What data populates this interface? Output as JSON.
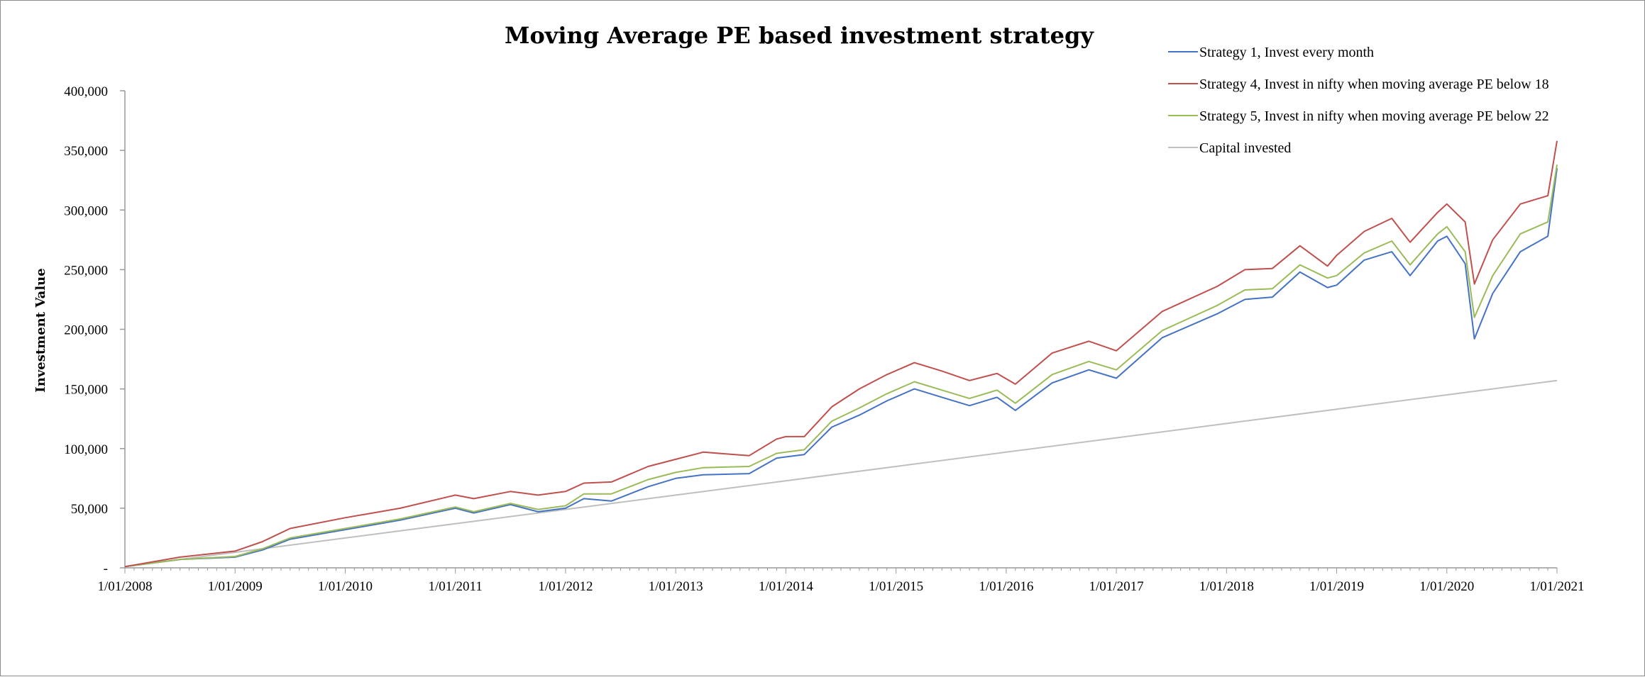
{
  "chart_data": {
    "type": "line",
    "title": "Moving Average PE based investment strategy",
    "ylabel": "Investment Value",
    "xlabel": "",
    "ylim": [
      0,
      400000
    ],
    "yticks": [
      {
        "value": 0,
        "label": "-"
      },
      {
        "value": 50000,
        "label": "50,000"
      },
      {
        "value": 100000,
        "label": "100,000"
      },
      {
        "value": 150000,
        "label": "150,000"
      },
      {
        "value": 200000,
        "label": "200,000"
      },
      {
        "value": 250000,
        "label": "250,000"
      },
      {
        "value": 300000,
        "label": "300,000"
      },
      {
        "value": 350000,
        "label": "350,000"
      },
      {
        "value": 400000,
        "label": "400,000"
      }
    ],
    "xlim": [
      "1/01/2008",
      "1/01/2021"
    ],
    "xticks": [
      "1/01/2008",
      "1/01/2009",
      "1/01/2010",
      "1/01/2011",
      "1/01/2012",
      "1/01/2013",
      "1/01/2014",
      "1/01/2015",
      "1/01/2016",
      "1/01/2017",
      "1/01/2018",
      "1/01/2019",
      "1/01/2020",
      "1/01/2021"
    ],
    "grid": false,
    "legend_position": "top-right",
    "series": [
      {
        "name": "Strategy 1, Invest every month",
        "color": "#4472c4",
        "points": [
          [
            "1/01/2008",
            1000
          ],
          [
            "1/07/2008",
            7000
          ],
          [
            "1/01/2009",
            9000
          ],
          [
            "1/04/2009",
            15000
          ],
          [
            "1/07/2009",
            24000
          ],
          [
            "1/01/2010",
            32000
          ],
          [
            "1/07/2010",
            40000
          ],
          [
            "1/01/2011",
            50000
          ],
          [
            "1/03/2011",
            46000
          ],
          [
            "1/07/2011",
            53000
          ],
          [
            "1/10/2011",
            47000
          ],
          [
            "1/01/2012",
            50000
          ],
          [
            "1/03/2012",
            58000
          ],
          [
            "1/06/2012",
            56000
          ],
          [
            "1/10/2012",
            68000
          ],
          [
            "1/01/2013",
            75000
          ],
          [
            "1/04/2013",
            78000
          ],
          [
            "1/09/2013",
            79000
          ],
          [
            "1/12/2013",
            92000
          ],
          [
            "1/01/2014",
            93000
          ],
          [
            "1/03/2014",
            95000
          ],
          [
            "1/06/2014",
            118000
          ],
          [
            "1/09/2014",
            128000
          ],
          [
            "1/12/2014",
            140000
          ],
          [
            "1/03/2015",
            150000
          ],
          [
            "1/06/2015",
            143000
          ],
          [
            "1/09/2015",
            136000
          ],
          [
            "1/12/2015",
            143000
          ],
          [
            "1/02/2016",
            132000
          ],
          [
            "1/06/2016",
            155000
          ],
          [
            "1/10/2016",
            166000
          ],
          [
            "1/01/2017",
            159000
          ],
          [
            "1/06/2017",
            193000
          ],
          [
            "1/12/2017",
            213000
          ],
          [
            "1/03/2018",
            225000
          ],
          [
            "1/06/2018",
            227000
          ],
          [
            "1/09/2018",
            248000
          ],
          [
            "1/12/2018",
            235000
          ],
          [
            "1/01/2019",
            237000
          ],
          [
            "1/04/2019",
            258000
          ],
          [
            "1/07/2019",
            265000
          ],
          [
            "1/09/2019",
            245000
          ],
          [
            "1/12/2019",
            274000
          ],
          [
            "1/01/2020",
            278000
          ],
          [
            "1/03/2020",
            255000
          ],
          [
            "1/04/2020",
            192000
          ],
          [
            "1/06/2020",
            230000
          ],
          [
            "1/09/2020",
            265000
          ],
          [
            "1/12/2020",
            278000
          ],
          [
            "1/01/2021",
            335000
          ]
        ]
      },
      {
        "name": "Strategy 4, Invest in nifty when moving average PE below 18",
        "color": "#c0504d",
        "points": [
          [
            "1/01/2008",
            1000
          ],
          [
            "1/07/2008",
            9000
          ],
          [
            "1/01/2009",
            14000
          ],
          [
            "1/04/2009",
            22000
          ],
          [
            "1/07/2009",
            33000
          ],
          [
            "1/01/2010",
            42000
          ],
          [
            "1/07/2010",
            50000
          ],
          [
            "1/01/2011",
            61000
          ],
          [
            "1/03/2011",
            58000
          ],
          [
            "1/07/2011",
            64000
          ],
          [
            "1/10/2011",
            61000
          ],
          [
            "1/01/2012",
            64000
          ],
          [
            "1/03/2012",
            71000
          ],
          [
            "1/06/2012",
            72000
          ],
          [
            "1/10/2012",
            85000
          ],
          [
            "1/01/2013",
            91000
          ],
          [
            "1/04/2013",
            97000
          ],
          [
            "1/09/2013",
            94000
          ],
          [
            "1/12/2013",
            108000
          ],
          [
            "1/01/2014",
            110000
          ],
          [
            "1/03/2014",
            110000
          ],
          [
            "1/06/2014",
            135000
          ],
          [
            "1/09/2014",
            150000
          ],
          [
            "1/12/2014",
            162000
          ],
          [
            "1/03/2015",
            172000
          ],
          [
            "1/06/2015",
            165000
          ],
          [
            "1/09/2015",
            157000
          ],
          [
            "1/12/2015",
            163000
          ],
          [
            "1/02/2016",
            154000
          ],
          [
            "1/06/2016",
            180000
          ],
          [
            "1/10/2016",
            190000
          ],
          [
            "1/01/2017",
            182000
          ],
          [
            "1/06/2017",
            215000
          ],
          [
            "1/12/2017",
            236000
          ],
          [
            "1/03/2018",
            250000
          ],
          [
            "1/06/2018",
            251000
          ],
          [
            "1/09/2018",
            270000
          ],
          [
            "1/12/2018",
            253000
          ],
          [
            "1/01/2019",
            262000
          ],
          [
            "1/04/2019",
            282000
          ],
          [
            "1/07/2019",
            293000
          ],
          [
            "1/09/2019",
            273000
          ],
          [
            "1/12/2019",
            298000
          ],
          [
            "1/01/2020",
            305000
          ],
          [
            "1/03/2020",
            290000
          ],
          [
            "1/04/2020",
            238000
          ],
          [
            "1/06/2020",
            275000
          ],
          [
            "1/09/2020",
            305000
          ],
          [
            "1/12/2020",
            312000
          ],
          [
            "1/01/2021",
            358000
          ]
        ]
      },
      {
        "name": "Strategy 5, Invest in nifty when moving average PE below 22",
        "color": "#9bbb59",
        "points": [
          [
            "1/01/2008",
            1000
          ],
          [
            "1/07/2008",
            7000
          ],
          [
            "1/01/2009",
            9500
          ],
          [
            "1/04/2009",
            16000
          ],
          [
            "1/07/2009",
            25000
          ],
          [
            "1/01/2010",
            33000
          ],
          [
            "1/07/2010",
            41000
          ],
          [
            "1/01/2011",
            51000
          ],
          [
            "1/03/2011",
            47000
          ],
          [
            "1/07/2011",
            54000
          ],
          [
            "1/10/2011",
            49000
          ],
          [
            "1/01/2012",
            52000
          ],
          [
            "1/03/2012",
            62000
          ],
          [
            "1/06/2012",
            62000
          ],
          [
            "1/10/2012",
            74000
          ],
          [
            "1/01/2013",
            80000
          ],
          [
            "1/04/2013",
            84000
          ],
          [
            "1/09/2013",
            85000
          ],
          [
            "1/12/2013",
            96000
          ],
          [
            "1/01/2014",
            97000
          ],
          [
            "1/03/2014",
            99000
          ],
          [
            "1/06/2014",
            123000
          ],
          [
            "1/09/2014",
            134000
          ],
          [
            "1/12/2014",
            146000
          ],
          [
            "1/03/2015",
            156000
          ],
          [
            "1/06/2015",
            149000
          ],
          [
            "1/09/2015",
            142000
          ],
          [
            "1/12/2015",
            149000
          ],
          [
            "1/02/2016",
            138000
          ],
          [
            "1/06/2016",
            162000
          ],
          [
            "1/10/2016",
            173000
          ],
          [
            "1/01/2017",
            166000
          ],
          [
            "1/06/2017",
            199000
          ],
          [
            "1/12/2017",
            220000
          ],
          [
            "1/03/2018",
            233000
          ],
          [
            "1/06/2018",
            234000
          ],
          [
            "1/09/2018",
            254000
          ],
          [
            "1/12/2018",
            243000
          ],
          [
            "1/01/2019",
            245000
          ],
          [
            "1/04/2019",
            264000
          ],
          [
            "1/07/2019",
            274000
          ],
          [
            "1/09/2019",
            254000
          ],
          [
            "1/12/2019",
            280000
          ],
          [
            "1/01/2020",
            286000
          ],
          [
            "1/03/2020",
            265000
          ],
          [
            "1/04/2020",
            210000
          ],
          [
            "1/06/2020",
            245000
          ],
          [
            "1/09/2020",
            280000
          ],
          [
            "1/12/2020",
            290000
          ],
          [
            "1/01/2021",
            338000
          ]
        ]
      },
      {
        "name": "Capital invested",
        "color": "#bfbfbf",
        "points": [
          [
            "1/01/2008",
            1000
          ],
          [
            "1/01/2009",
            13000
          ],
          [
            "1/01/2010",
            25000
          ],
          [
            "1/01/2011",
            37000
          ],
          [
            "1/01/2012",
            49000
          ],
          [
            "1/01/2013",
            61000
          ],
          [
            "1/01/2014",
            73000
          ],
          [
            "1/01/2015",
            85000
          ],
          [
            "1/01/2016",
            97000
          ],
          [
            "1/01/2017",
            109000
          ],
          [
            "1/01/2018",
            121000
          ],
          [
            "1/01/2019",
            133000
          ],
          [
            "1/01/2020",
            145000
          ],
          [
            "1/01/2021",
            157000
          ]
        ]
      }
    ]
  }
}
